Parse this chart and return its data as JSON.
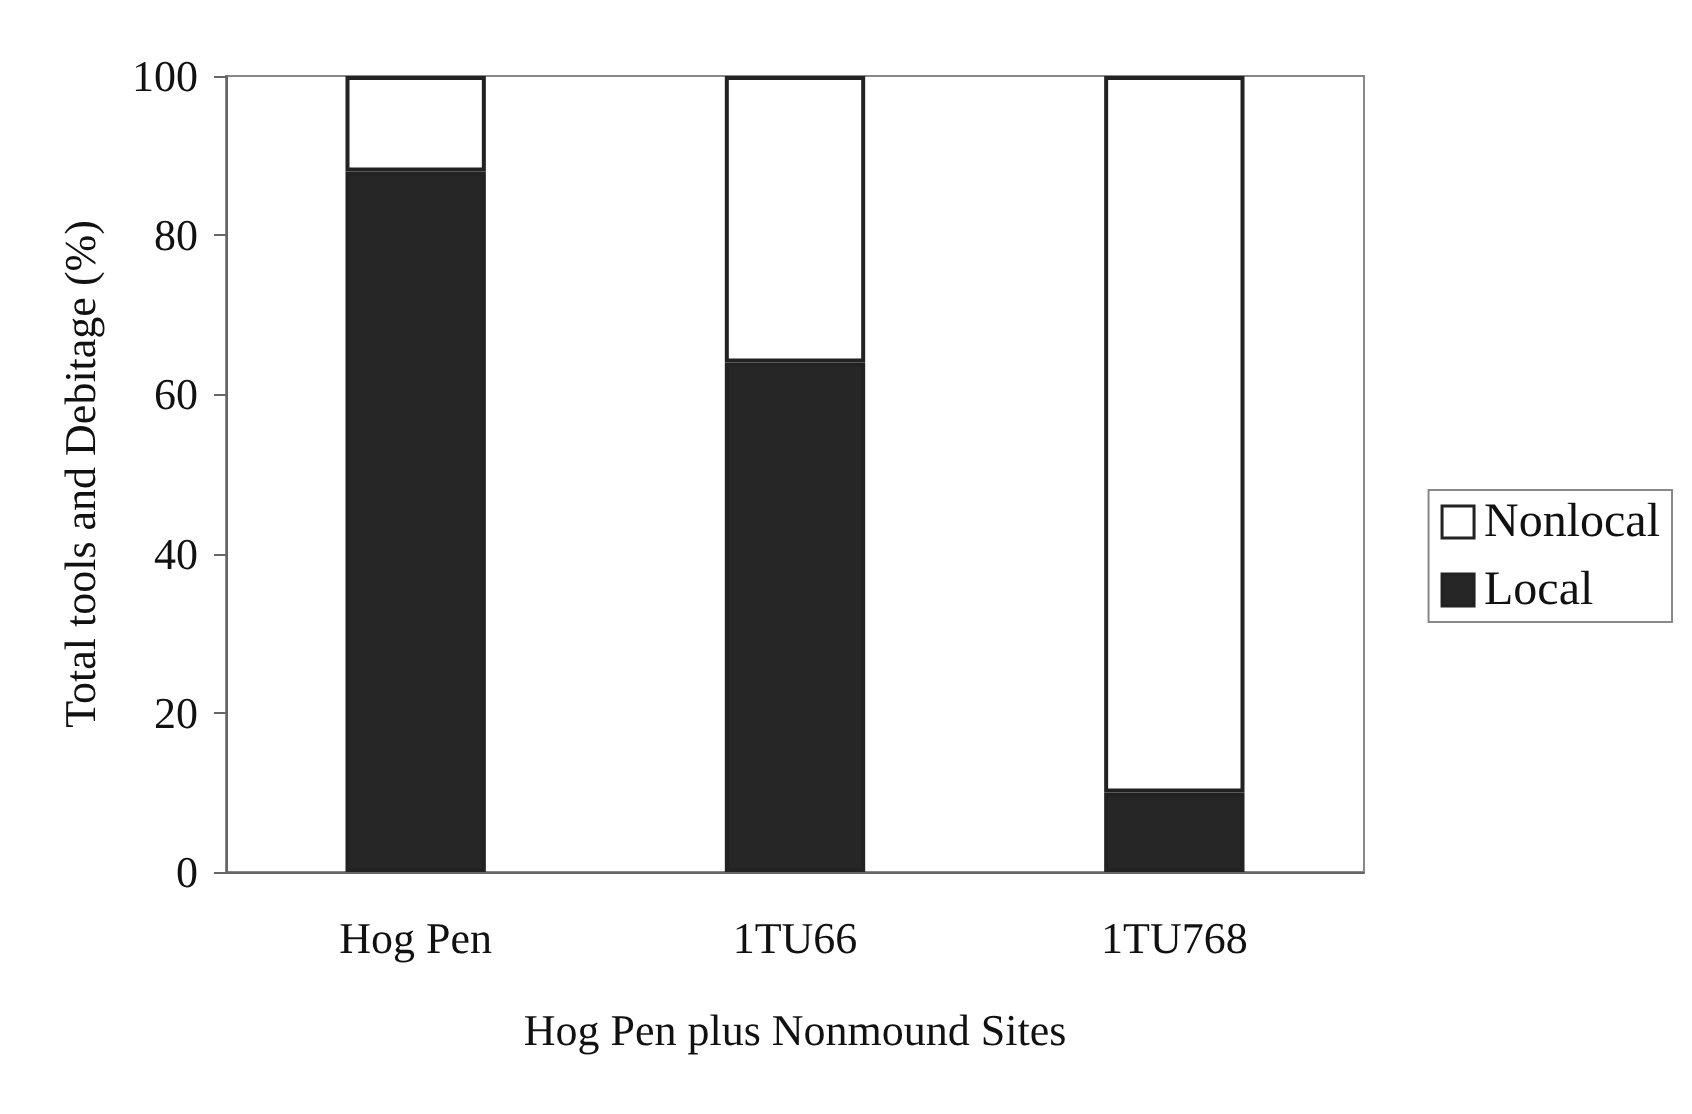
{
  "chart_data": {
    "type": "bar",
    "stacked": true,
    "xlabel": "Hog Pen plus Nonmound Sites",
    "ylabel": "Total tools and Debitage (%)",
    "categories": [
      "Hog Pen",
      "1TU66",
      "1TU768"
    ],
    "series": [
      {
        "name": "Local",
        "color": "#262626",
        "values": [
          88,
          64,
          10
        ]
      },
      {
        "name": "Nonlocal",
        "color": "#ffffff",
        "values": [
          12,
          36,
          90
        ]
      }
    ],
    "ylim": [
      0,
      100
    ],
    "yticks": [
      0,
      20,
      40,
      60,
      80,
      100
    ],
    "grid": false,
    "legend": "right"
  }
}
